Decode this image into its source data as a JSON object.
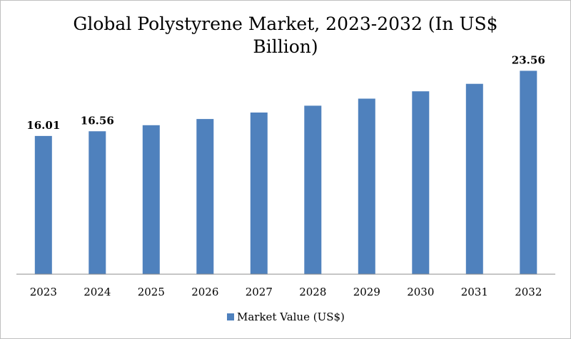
{
  "chart_data": {
    "type": "bar",
    "title_lines": [
      "Global Polystyrene Market, 2023-2032 (In US$",
      "Billion)"
    ],
    "categories": [
      "2023",
      "2024",
      "2025",
      "2026",
      "2027",
      "2028",
      "2029",
      "2030",
      "2031",
      "2032"
    ],
    "series": [
      {
        "name": "Market Value (US$)",
        "color": "#4f81bd",
        "values": [
          16.01,
          16.56,
          17.26,
          17.98,
          18.73,
          19.52,
          20.34,
          21.19,
          22.05,
          23.56
        ],
        "data_labels": [
          "16.01",
          "16.56",
          "",
          "",
          "",
          "",
          "",
          "",
          "",
          "23.56"
        ]
      }
    ],
    "ylim": [
      0,
      26.4
    ],
    "xlabel": "",
    "ylabel": "",
    "grid": false,
    "legend": "bottom"
  }
}
